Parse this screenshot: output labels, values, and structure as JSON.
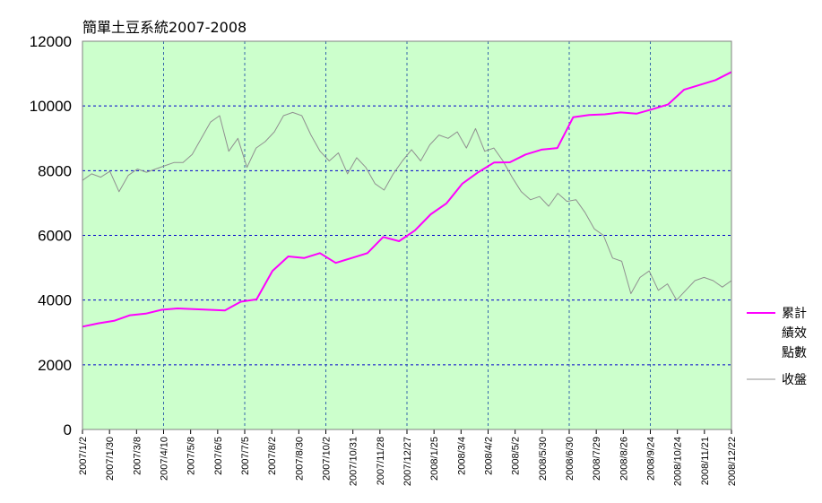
{
  "chart_data": {
    "type": "line",
    "title": "簡單土豆系統2007-2008",
    "xlabel": "",
    "ylabel": "",
    "ylim": [
      0,
      12000
    ],
    "yticks": [
      0,
      2000,
      4000,
      6000,
      8000,
      10000,
      12000
    ],
    "x_tick_labels": [
      "2007/1/2",
      "2007/1/30",
      "2007/3/8",
      "2007/4/10",
      "2007/5/8",
      "2007/6/5",
      "2007/7/5",
      "2007/8/2",
      "2007/8/30",
      "2007/10/2",
      "2007/10/31",
      "2007/11/28",
      "2007/12/27",
      "2008/1/25",
      "2008/3/4",
      "2008/4/2",
      "2008/5/2",
      "2008/5/30",
      "2008/6/30",
      "2008/7/29",
      "2008/8/26",
      "2008/9/24",
      "2008/10/24",
      "2008/11/21",
      "2008/12/22"
    ],
    "vertical_grid_ticks": [
      "2007/4/10",
      "2007/7/5",
      "2007/10/2",
      "2007/12/27",
      "2008/4/2",
      "2008/6/30",
      "2008/9/24"
    ],
    "grid": {
      "horizontal": true,
      "vertical": true,
      "style": "dashed"
    },
    "plot_background": "#ccffcc",
    "legend_position": "right",
    "series": [
      {
        "name": "累計績效點數",
        "legend_lines": [
          "累計",
          "績效",
          "點數"
        ],
        "color": "#ff00ff",
        "line_width": 2,
        "values": [
          3180,
          3280,
          3360,
          3530,
          3580,
          3700,
          3740,
          3720,
          3700,
          3680,
          3950,
          4020,
          4900,
          5350,
          5300,
          5450,
          5150,
          5300,
          5450,
          5950,
          5820,
          6150,
          6650,
          6990,
          7600,
          7950,
          8250,
          8260,
          8500,
          8650,
          8700,
          9650,
          9720,
          9740,
          9800,
          9760,
          9900,
          10050,
          10500,
          10650,
          10800,
          11050
        ]
      },
      {
        "name": "收盤",
        "color": "#909090",
        "line_width": 1,
        "values": [
          7700,
          7900,
          7800,
          7980,
          7350,
          7850,
          8050,
          7950,
          8050,
          8150,
          8250,
          8250,
          8500,
          9000,
          9500,
          9700,
          8600,
          9000,
          8100,
          8700,
          8900,
          9200,
          9700,
          9800,
          9700,
          9100,
          8600,
          8300,
          8550,
          7900,
          8400,
          8100,
          7600,
          7400,
          7900,
          8300,
          8650,
          8300,
          8800,
          9100,
          9000,
          9200,
          8700,
          9300,
          8600,
          8700,
          8300,
          7800,
          7350,
          7100,
          7200,
          6900,
          7300,
          7050,
          7100,
          6700,
          6200,
          6000,
          5300,
          5200,
          4200,
          4700,
          4900,
          4300,
          4500,
          4000,
          4300,
          4600,
          4700,
          4600,
          4400,
          4600
        ]
      }
    ]
  }
}
